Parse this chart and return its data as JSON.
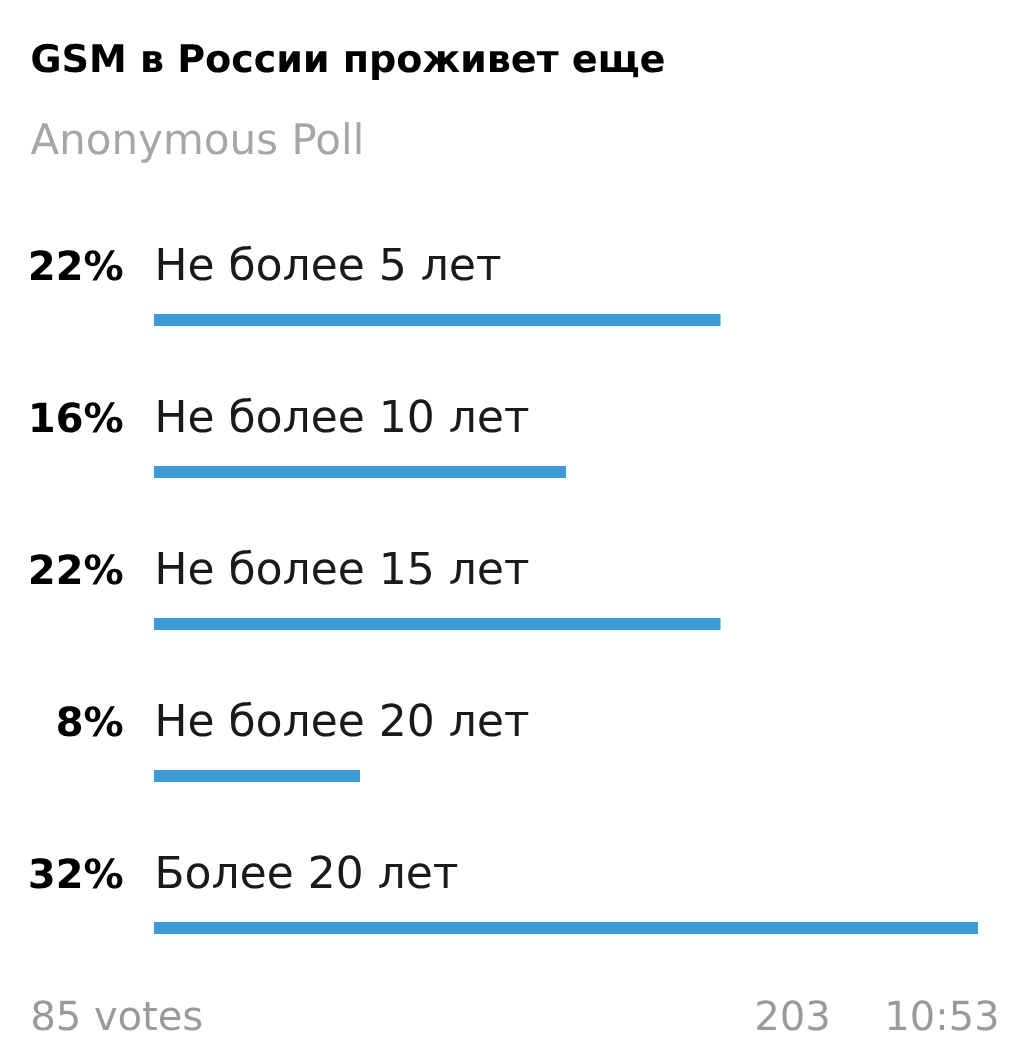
{
  "chart_data": {
    "type": "bar",
    "orientation": "horizontal",
    "title": "GSM в России проживет еще",
    "subtitle": "Anonymous Poll",
    "categories": [
      "Не более 5 лет",
      "Не более 10 лет",
      "Не более 15 лет",
      "Не более 20 лет",
      "Более 20 лет"
    ],
    "values": [
      22,
      16,
      22,
      8,
      32
    ],
    "value_labels": [
      "22%",
      "16%",
      "22%",
      "8%",
      "32%"
    ],
    "color": "#3d9ad6",
    "tick_labels": "y",
    "annotations": [
      "85 votes",
      "203",
      "10:53"
    ]
  }
}
